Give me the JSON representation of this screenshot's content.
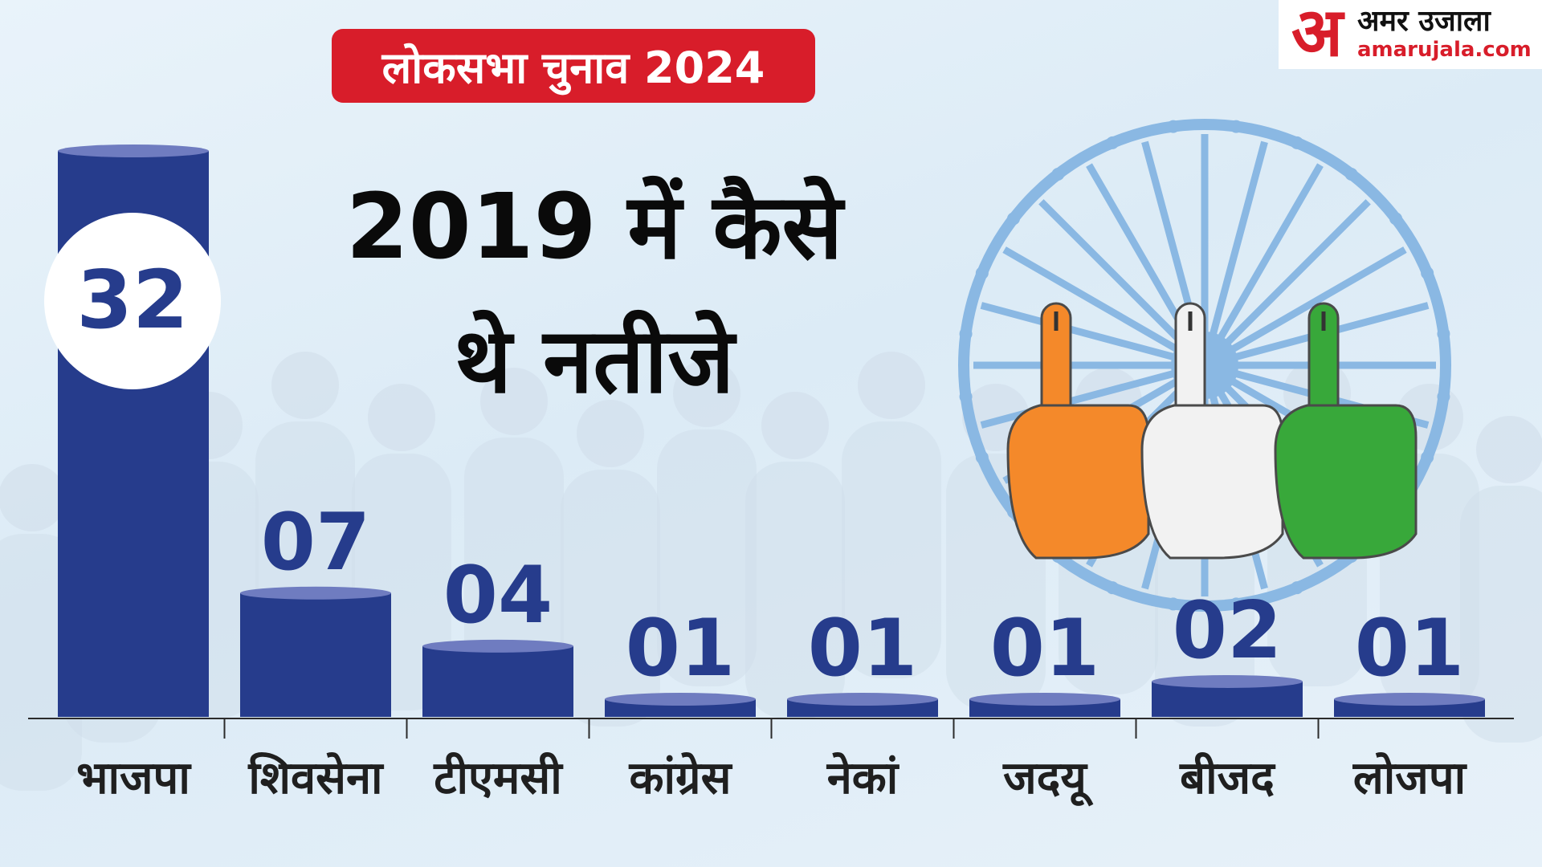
{
  "header": {
    "badge_text": "लोकसभा चुनाव 2024",
    "headline_line1": "2019 में कैसे",
    "headline_line2": "थे नतीजे"
  },
  "logo": {
    "mark": "अ",
    "name": "अमर उजाला",
    "domain": "amarujala.com"
  },
  "colors": {
    "bar": "#263c8c",
    "bar_top": "#6f7cc0",
    "badge": "#d81d2a",
    "label": "#263c8c",
    "saffron": "#f4892a",
    "white": "#f2f2f2",
    "green": "#38a83a",
    "chakra": "#8ab8e3"
  },
  "chart_data": {
    "type": "bar",
    "categories": [
      "भाजपा",
      "शिवसेना",
      "टीएमसी",
      "कांग्रेस",
      "नेकां",
      "जदयू",
      "बीजद",
      "लोजपा"
    ],
    "values": [
      32,
      7,
      4,
      1,
      1,
      1,
      2,
      1
    ],
    "value_labels": [
      "32",
      "07",
      "04",
      "01",
      "01",
      "01",
      "02",
      "01"
    ],
    "title": "",
    "xlabel": "",
    "ylabel": "",
    "ylim": [
      0,
      32
    ],
    "grid": false,
    "legend": "none"
  }
}
